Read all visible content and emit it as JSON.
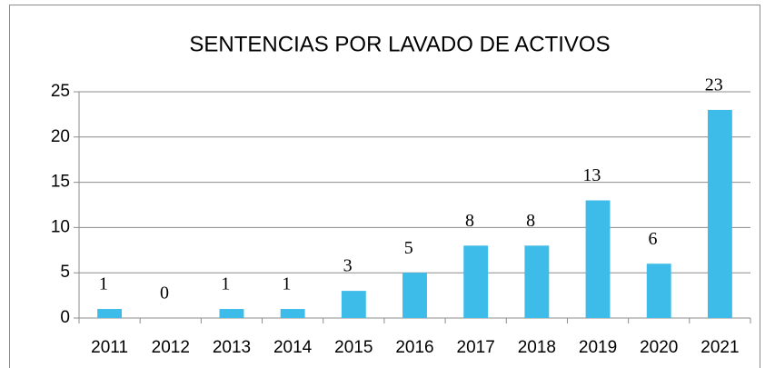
{
  "chart_data": {
    "type": "bar",
    "title": "SENTENCIAS POR LAVADO DE ACTIVOS",
    "categories": [
      "2011",
      "2012",
      "2013",
      "2014",
      "2015",
      "2016",
      "2017",
      "2018",
      "2019",
      "2020",
      "2021"
    ],
    "values": [
      1,
      0,
      1,
      1,
      3,
      5,
      8,
      8,
      13,
      6,
      23
    ],
    "color": "#3dbbe9",
    "title_color": "#3cb4e4",
    "ylim": [
      0,
      25
    ],
    "yticks": [
      0,
      5,
      10,
      15,
      20,
      25
    ],
    "grid": true,
    "data_labels": true
  }
}
